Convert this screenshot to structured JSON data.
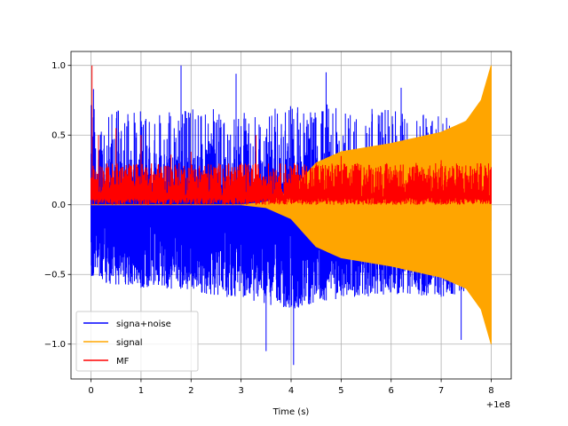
{
  "chart_data": {
    "type": "line",
    "title": "",
    "xlabel": "Time (s)",
    "ylabel": "",
    "x_offset_label": "+1e8",
    "xlim": [
      -0.4,
      8.4
    ],
    "ylim": [
      -1.25,
      1.1
    ],
    "grid": true,
    "legend_position": "lower-left",
    "x_ticks": [
      0,
      1,
      2,
      3,
      4,
      5,
      6,
      7,
      8
    ],
    "x_tick_labels": [
      "0",
      "1",
      "2",
      "3",
      "4",
      "5",
      "6",
      "7",
      "8"
    ],
    "y_ticks": [
      -1.0,
      -0.5,
      0.0,
      0.5,
      1.0
    ],
    "y_tick_labels": [
      "−1.0",
      "−0.5",
      "0.0",
      "0.5",
      "1.0"
    ],
    "series": [
      {
        "name": "signa+noise",
        "color": "#0000ff",
        "x_range": [
          0,
          8
        ],
        "description": "noisy signal; upper spikes mostly 0.3-0.7 with peaks near 1.0; lower spikes mostly -0.3 to -0.6 with peaks near -1.15",
        "upper_envelope": [
          [
            0,
            0.72
          ],
          [
            1,
            0.68
          ],
          [
            2,
            0.72
          ],
          [
            3,
            0.68
          ],
          [
            4,
            0.72
          ],
          [
            5,
            0.72
          ],
          [
            6,
            0.68
          ],
          [
            7,
            0.64
          ],
          [
            8,
            0.5
          ]
        ],
        "lower_envelope": [
          [
            0,
            -0.55
          ],
          [
            1,
            -0.6
          ],
          [
            2,
            -0.62
          ],
          [
            3,
            -0.68
          ],
          [
            4,
            -0.75
          ],
          [
            5,
            -0.68
          ],
          [
            6,
            -0.64
          ],
          [
            7,
            -0.66
          ],
          [
            8,
            -0.6
          ]
        ],
        "peaks": [
          [
            0.05,
            0.83
          ],
          [
            1.8,
            1.0
          ],
          [
            4.05,
            -1.15
          ],
          [
            3.5,
            -1.05
          ],
          [
            7.4,
            -0.97
          ],
          [
            4.7,
            0.95
          ],
          [
            2.9,
            0.94
          ],
          [
            6.2,
            0.84
          ]
        ]
      },
      {
        "name": "signal",
        "color": "#ffa500",
        "x_range": [
          0,
          8
        ],
        "description": "chirp whose amplitude grows with time",
        "amplitude_envelope": [
          [
            0,
            0.0
          ],
          [
            3.0,
            0.0
          ],
          [
            3.5,
            0.02
          ],
          [
            4.0,
            0.1
          ],
          [
            4.5,
            0.3
          ],
          [
            5.0,
            0.38
          ],
          [
            5.5,
            0.41
          ],
          [
            6.0,
            0.44
          ],
          [
            6.5,
            0.48
          ],
          [
            7.0,
            0.52
          ],
          [
            7.5,
            0.6
          ],
          [
            7.8,
            0.75
          ],
          [
            8.0,
            1.0
          ]
        ]
      },
      {
        "name": "MF",
        "color": "#ff0000",
        "x_range": [
          0,
          8
        ],
        "description": "matched filter output, positive values mostly 0.05-0.3 with a peak of 1.0 at x=0",
        "band": [
          0.05,
          0.3
        ],
        "peaks": [
          [
            0.02,
            1.0
          ],
          [
            0.15,
            0.5
          ],
          [
            0.5,
            0.55
          ],
          [
            1.0,
            0.5
          ],
          [
            1.6,
            0.36
          ],
          [
            2.0,
            0.38
          ],
          [
            3.3,
            0.5
          ],
          [
            4.5,
            0.3
          ],
          [
            5.0,
            0.35
          ],
          [
            6.5,
            0.3
          ],
          [
            7.0,
            0.32
          ]
        ]
      }
    ],
    "legend": [
      {
        "label": "signa+noise",
        "color": "#0000ff"
      },
      {
        "label": "signal",
        "color": "#ffa500"
      },
      {
        "label": "MF",
        "color": "#ff0000"
      }
    ]
  }
}
